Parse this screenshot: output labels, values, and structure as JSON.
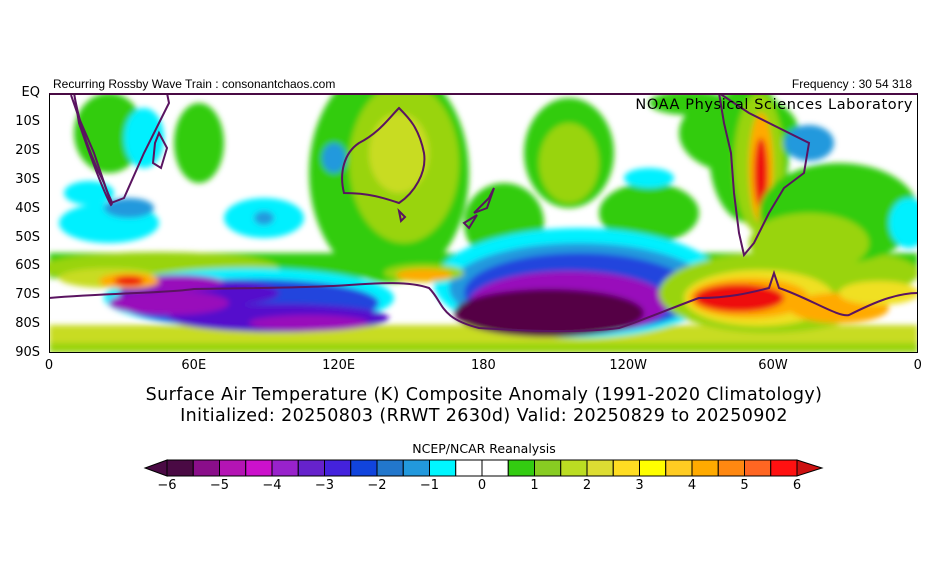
{
  "header": {
    "left_text": "Recurring Rossby Wave Train : consonantchaos.com",
    "right_text": "Frequency : 30 54 318",
    "lab": "NOAA Physical Sciences Laboratory"
  },
  "map": {
    "lat_labels": [
      "EQ",
      "10S",
      "20S",
      "30S",
      "40S",
      "50S",
      "60S",
      "70S",
      "80S",
      "90S"
    ],
    "lon_labels": [
      "0",
      "60E",
      "120E",
      "180",
      "120W",
      "60W",
      "0"
    ],
    "colors": {
      "coast": "#5a1460",
      "green": "#33cc11",
      "yellowgreen": "#99d411",
      "lime": "#c8dc22",
      "yellow": "#f0e020",
      "orange": "#ffaa00",
      "red": "#ee1111",
      "cyan": "#00f0ff",
      "lightblue": "#2299dd",
      "blue": "#2244dd",
      "indigo": "#5511cc",
      "purple": "#9911bb",
      "darkpurple": "#550044"
    }
  },
  "title": {
    "line1": "Surface Air Temperature (K) Composite Anomaly (1991-2020 Climatology)",
    "line2": "Initialized: 20250803 (RRWT 2630d) Valid: 20250829 to 20250902"
  },
  "colorbar": {
    "source": "NCEP/NCAR Reanalysis",
    "min": -6,
    "max": 6,
    "labels": [
      "-6",
      "-5",
      "-4",
      "-3",
      "-2",
      "-1",
      "0",
      "1",
      "2",
      "3",
      "4",
      "5",
      "6"
    ],
    "colors": [
      "#4a0a44",
      "#8a0e8a",
      "#b414b4",
      "#cc11cc",
      "#9922cc",
      "#6622cc",
      "#4422dd",
      "#1144dd",
      "#2277cc",
      "#2299dd",
      "#00f6ff",
      "#ffffff",
      "#ffffff",
      "#33cc11",
      "#88cc22",
      "#bbdd22",
      "#dddd33",
      "#ffdd22",
      "#ffff00",
      "#ffcc22",
      "#ffaa00",
      "#ff8811",
      "#ff6622",
      "#ff1111"
    ],
    "under_color": "#4a0a44",
    "over_color": "#cc1111"
  }
}
